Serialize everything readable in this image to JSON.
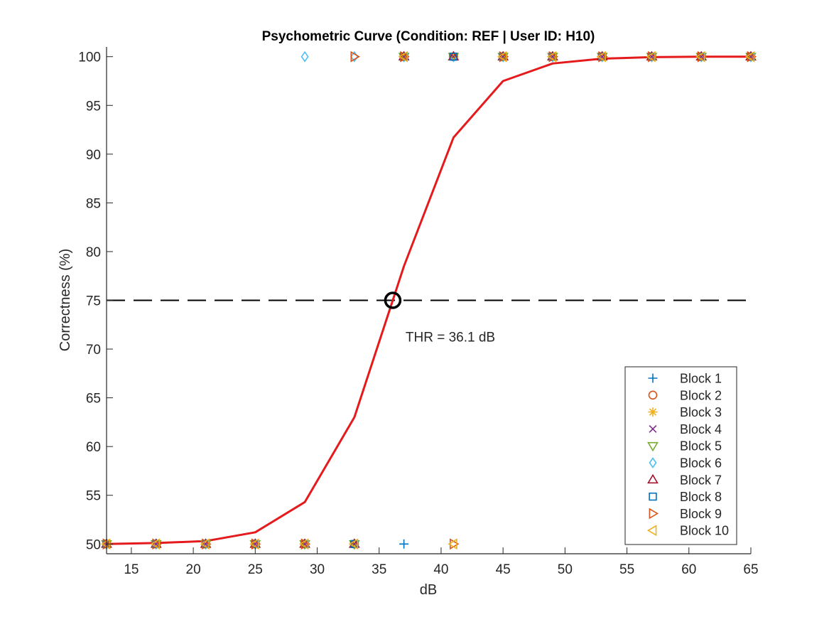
{
  "chart_data": {
    "type": "scatter",
    "title": "Psychometric Curve (Condition: REF | User ID: H10)",
    "xlabel": "dB",
    "ylabel": "Correctness (%)",
    "xlim": [
      13,
      65
    ],
    "ylim": [
      49,
      101
    ],
    "xticks": [
      15,
      20,
      25,
      30,
      35,
      40,
      45,
      50,
      55,
      60,
      65
    ],
    "yticks": [
      50,
      55,
      60,
      65,
      70,
      75,
      80,
      85,
      90,
      95,
      100
    ],
    "grid": false,
    "legend_position": "bottom-right",
    "fit": {
      "name": "",
      "color": "#e41a1c",
      "x": [
        13,
        17,
        21,
        25,
        29,
        33,
        36.1,
        37,
        41,
        45,
        49,
        53,
        57,
        61,
        65
      ],
      "y": [
        50.0,
        50.1,
        50.3,
        51.2,
        54.3,
        63.0,
        75.0,
        78.5,
        91.7,
        97.5,
        99.3,
        99.8,
        99.95,
        100.0,
        100.0
      ]
    },
    "reference_line": {
      "y": 75,
      "style": "dashed",
      "color": "#000000"
    },
    "threshold": {
      "x": 36.1,
      "y": 75,
      "label": "THR = 36.1 dB",
      "color": "#000000"
    },
    "series": [
      {
        "name": "Block 1",
        "marker": "plus",
        "color": "#0072bd",
        "x": [
          13,
          17,
          21,
          25,
          29,
          33,
          37,
          41,
          45,
          49,
          53,
          57,
          61,
          65
        ],
        "y": [
          50,
          50,
          50,
          50,
          50,
          50,
          50,
          100,
          100,
          100,
          100,
          100,
          100,
          100
        ]
      },
      {
        "name": "Block 2",
        "marker": "circle",
        "color": "#d95319",
        "x": [
          13,
          17,
          21,
          25,
          29,
          33,
          37,
          41,
          45,
          49,
          53,
          57,
          61,
          65
        ],
        "y": [
          50,
          50,
          50,
          50,
          50,
          50,
          100,
          100,
          100,
          100,
          100,
          100,
          100,
          100
        ]
      },
      {
        "name": "Block 3",
        "marker": "asterisk",
        "color": "#edb120",
        "x": [
          13,
          17,
          21,
          25,
          29,
          33,
          37,
          41,
          45,
          49,
          53,
          57,
          61,
          65
        ],
        "y": [
          50,
          50,
          50,
          50,
          50,
          50,
          100,
          100,
          100,
          100,
          100,
          100,
          100,
          100
        ]
      },
      {
        "name": "Block 4",
        "marker": "x",
        "color": "#7e2f8e",
        "x": [
          13,
          17,
          21,
          25,
          29,
          33,
          37,
          41,
          45,
          49,
          53,
          57,
          61,
          65
        ],
        "y": [
          50,
          50,
          50,
          50,
          50,
          50,
          100,
          100,
          100,
          100,
          100,
          100,
          100,
          100
        ]
      },
      {
        "name": "Block 5",
        "marker": "triangle-down",
        "color": "#77ac30",
        "x": [
          13,
          17,
          21,
          25,
          29,
          33,
          37,
          41,
          45,
          49,
          53,
          57,
          61,
          65
        ],
        "y": [
          50,
          50,
          50,
          50,
          50,
          50,
          100,
          100,
          100,
          100,
          100,
          100,
          100,
          100
        ]
      },
      {
        "name": "Block 6",
        "marker": "diamond",
        "color": "#4dbeee",
        "x": [
          13,
          17,
          21,
          25,
          29,
          33,
          37,
          41,
          45,
          49,
          53,
          57,
          61,
          65
        ],
        "y": [
          50,
          50,
          50,
          50,
          100,
          100,
          100,
          100,
          100,
          100,
          100,
          100,
          100,
          100
        ]
      },
      {
        "name": "Block 7",
        "marker": "triangle-up",
        "color": "#a2142f",
        "x": [
          13,
          17,
          21,
          25,
          29,
          33,
          37,
          41,
          45,
          49,
          53,
          57,
          61,
          65
        ],
        "y": [
          50,
          50,
          50,
          50,
          50,
          50,
          100,
          100,
          100,
          100,
          100,
          100,
          100,
          100
        ]
      },
      {
        "name": "Block 8",
        "marker": "square",
        "color": "#0072bd",
        "x": [
          13,
          17,
          21,
          25,
          29,
          33,
          37,
          41,
          45,
          49,
          53,
          57,
          61,
          65
        ],
        "y": [
          50,
          50,
          50,
          50,
          50,
          50,
          100,
          100,
          100,
          100,
          100,
          100,
          100,
          100
        ]
      },
      {
        "name": "Block 9",
        "marker": "triangle-right",
        "color": "#d95319",
        "x": [
          13,
          17,
          21,
          25,
          29,
          33,
          37,
          41,
          45,
          49,
          53,
          57,
          61,
          65
        ],
        "y": [
          50,
          50,
          50,
          50,
          50,
          100,
          100,
          50,
          100,
          100,
          100,
          100,
          100,
          100
        ]
      },
      {
        "name": "Block 10",
        "marker": "triangle-left",
        "color": "#edb120",
        "x": [
          13,
          17,
          21,
          25,
          29,
          33,
          37,
          41,
          45,
          49,
          53,
          57,
          61,
          65
        ],
        "y": [
          50,
          50,
          50,
          50,
          50,
          50,
          100,
          50,
          100,
          100,
          100,
          100,
          100,
          100
        ]
      }
    ]
  }
}
